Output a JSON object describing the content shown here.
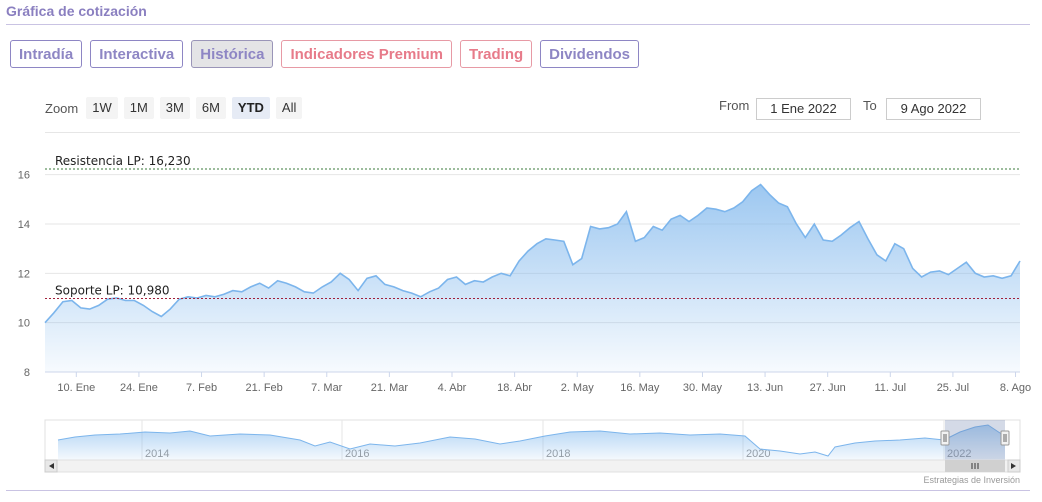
{
  "header": {
    "title": "Gráfica de cotización"
  },
  "tabs": [
    {
      "label": "Intradía",
      "active": false,
      "premium": false
    },
    {
      "label": "Interactiva",
      "active": false,
      "premium": false
    },
    {
      "label": "Histórica",
      "active": true,
      "premium": false
    },
    {
      "label": "Indicadores Premium",
      "active": false,
      "premium": true
    },
    {
      "label": "Trading",
      "active": false,
      "premium": true
    },
    {
      "label": "Dividendos",
      "active": false,
      "premium": false
    }
  ],
  "zoom": {
    "label": "Zoom",
    "buttons": [
      "1W",
      "1M",
      "3M",
      "6M",
      "YTD",
      "All"
    ],
    "selected": "YTD"
  },
  "range": {
    "from_label": "From",
    "from_value": "1 Ene 2022",
    "to_label": "To",
    "to_value": "9 Ago 2022"
  },
  "chart_data": {
    "type": "area",
    "title": "",
    "xlabel": "",
    "ylabel": "",
    "ylim": [
      8,
      17
    ],
    "y_ticks": [
      8,
      10,
      12,
      14,
      16
    ],
    "x_range": [
      "2022-01-03",
      "2022-08-09"
    ],
    "x_ticks": [
      {
        "date": "2022-01-10",
        "label": "10. Ene"
      },
      {
        "date": "2022-01-24",
        "label": "24. Ene"
      },
      {
        "date": "2022-02-07",
        "label": "7. Feb"
      },
      {
        "date": "2022-02-21",
        "label": "21. Feb"
      },
      {
        "date": "2022-03-07",
        "label": "7. Mar"
      },
      {
        "date": "2022-03-21",
        "label": "21. Mar"
      },
      {
        "date": "2022-04-04",
        "label": "4. Abr"
      },
      {
        "date": "2022-04-18",
        "label": "18. Abr"
      },
      {
        "date": "2022-05-02",
        "label": "2. May"
      },
      {
        "date": "2022-05-16",
        "label": "16. May"
      },
      {
        "date": "2022-05-30",
        "label": "30. May"
      },
      {
        "date": "2022-06-13",
        "label": "13. Jun"
      },
      {
        "date": "2022-06-27",
        "label": "27. Jun"
      },
      {
        "date": "2022-07-11",
        "label": "11. Jul"
      },
      {
        "date": "2022-07-25",
        "label": "25. Jul"
      },
      {
        "date": "2022-08-08",
        "label": "8. Ago"
      }
    ],
    "grid": true,
    "colors": {
      "line": "#7cb5ec",
      "resistance": "#3a7a3a",
      "support": "#a0203a"
    },
    "levels": [
      {
        "label": "Resistencia LP: 16,230",
        "value": 16.23
      },
      {
        "label": "Soporte LP: 10,980",
        "value": 10.98
      }
    ],
    "series": [
      {
        "name": "",
        "points": [
          [
            "2022-01-03",
            10.0
          ],
          [
            "2022-01-05",
            10.4
          ],
          [
            "2022-01-07",
            10.85
          ],
          [
            "2022-01-09",
            10.9
          ],
          [
            "2022-01-11",
            10.6
          ],
          [
            "2022-01-13",
            10.55
          ],
          [
            "2022-01-15",
            10.7
          ],
          [
            "2022-01-17",
            10.95
          ],
          [
            "2022-01-19",
            11.0
          ],
          [
            "2022-01-21",
            10.9
          ],
          [
            "2022-01-23",
            10.9
          ],
          [
            "2022-01-25",
            10.7
          ],
          [
            "2022-01-27",
            10.45
          ],
          [
            "2022-01-29",
            10.25
          ],
          [
            "2022-01-31",
            10.55
          ],
          [
            "2022-02-02",
            10.95
          ],
          [
            "2022-02-04",
            11.05
          ],
          [
            "2022-02-06",
            11.0
          ],
          [
            "2022-02-08",
            11.1
          ],
          [
            "2022-02-10",
            11.05
          ],
          [
            "2022-02-12",
            11.15
          ],
          [
            "2022-02-14",
            11.3
          ],
          [
            "2022-02-16",
            11.25
          ],
          [
            "2022-02-18",
            11.45
          ],
          [
            "2022-02-20",
            11.6
          ],
          [
            "2022-02-22",
            11.4
          ],
          [
            "2022-02-24",
            11.7
          ],
          [
            "2022-02-26",
            11.6
          ],
          [
            "2022-02-28",
            11.45
          ],
          [
            "2022-03-02",
            11.25
          ],
          [
            "2022-03-04",
            11.2
          ],
          [
            "2022-03-06",
            11.45
          ],
          [
            "2022-03-08",
            11.65
          ],
          [
            "2022-03-10",
            12.0
          ],
          [
            "2022-03-12",
            11.75
          ],
          [
            "2022-03-14",
            11.3
          ],
          [
            "2022-03-16",
            11.8
          ],
          [
            "2022-03-18",
            11.9
          ],
          [
            "2022-03-20",
            11.55
          ],
          [
            "2022-03-22",
            11.45
          ],
          [
            "2022-03-24",
            11.3
          ],
          [
            "2022-03-26",
            11.2
          ],
          [
            "2022-03-28",
            11.05
          ],
          [
            "2022-03-30",
            11.25
          ],
          [
            "2022-04-01",
            11.4
          ],
          [
            "2022-04-03",
            11.75
          ],
          [
            "2022-04-05",
            11.85
          ],
          [
            "2022-04-07",
            11.55
          ],
          [
            "2022-04-09",
            11.7
          ],
          [
            "2022-04-11",
            11.65
          ],
          [
            "2022-04-13",
            11.85
          ],
          [
            "2022-04-15",
            12.0
          ],
          [
            "2022-04-17",
            11.9
          ],
          [
            "2022-04-19",
            12.5
          ],
          [
            "2022-04-21",
            12.9
          ],
          [
            "2022-04-23",
            13.2
          ],
          [
            "2022-04-25",
            13.4
          ],
          [
            "2022-04-27",
            13.35
          ],
          [
            "2022-04-29",
            13.3
          ],
          [
            "2022-05-01",
            12.35
          ],
          [
            "2022-05-03",
            12.6
          ],
          [
            "2022-05-05",
            13.9
          ],
          [
            "2022-05-07",
            13.8
          ],
          [
            "2022-05-09",
            13.85
          ],
          [
            "2022-05-11",
            14.0
          ],
          [
            "2022-05-13",
            14.5
          ],
          [
            "2022-05-15",
            13.3
          ],
          [
            "2022-05-17",
            13.45
          ],
          [
            "2022-05-19",
            13.9
          ],
          [
            "2022-05-21",
            13.75
          ],
          [
            "2022-05-23",
            14.2
          ],
          [
            "2022-05-25",
            14.35
          ],
          [
            "2022-05-27",
            14.1
          ],
          [
            "2022-05-29",
            14.35
          ],
          [
            "2022-05-31",
            14.65
          ],
          [
            "2022-06-02",
            14.6
          ],
          [
            "2022-06-04",
            14.5
          ],
          [
            "2022-06-06",
            14.65
          ],
          [
            "2022-06-08",
            14.9
          ],
          [
            "2022-06-10",
            15.35
          ],
          [
            "2022-06-12",
            15.6
          ],
          [
            "2022-06-14",
            15.2
          ],
          [
            "2022-06-16",
            14.85
          ],
          [
            "2022-06-18",
            14.7
          ],
          [
            "2022-06-20",
            14.0
          ],
          [
            "2022-06-22",
            13.45
          ],
          [
            "2022-06-24",
            14.0
          ],
          [
            "2022-06-26",
            13.35
          ],
          [
            "2022-06-28",
            13.3
          ],
          [
            "2022-06-30",
            13.55
          ],
          [
            "2022-07-02",
            13.85
          ],
          [
            "2022-07-04",
            14.1
          ],
          [
            "2022-07-06",
            13.4
          ],
          [
            "2022-07-08",
            12.75
          ],
          [
            "2022-07-10",
            12.5
          ],
          [
            "2022-07-12",
            13.2
          ],
          [
            "2022-07-14",
            13.0
          ],
          [
            "2022-07-16",
            12.2
          ],
          [
            "2022-07-18",
            11.85
          ],
          [
            "2022-07-20",
            12.05
          ],
          [
            "2022-07-22",
            12.1
          ],
          [
            "2022-07-24",
            11.95
          ],
          [
            "2022-07-26",
            12.2
          ],
          [
            "2022-07-28",
            12.45
          ],
          [
            "2022-07-30",
            12.0
          ],
          [
            "2022-08-01",
            11.85
          ],
          [
            "2022-08-03",
            11.9
          ],
          [
            "2022-08-05",
            11.8
          ],
          [
            "2022-08-07",
            11.9
          ],
          [
            "2022-08-09",
            12.5
          ]
        ]
      }
    ],
    "navigator": {
      "year_labels": [
        "2014",
        "2016",
        "2018",
        "2020",
        "2022"
      ],
      "selected_range": [
        "2022-01-03",
        "2022-08-09"
      ]
    }
  },
  "credit": "Estrategias de Inversión"
}
